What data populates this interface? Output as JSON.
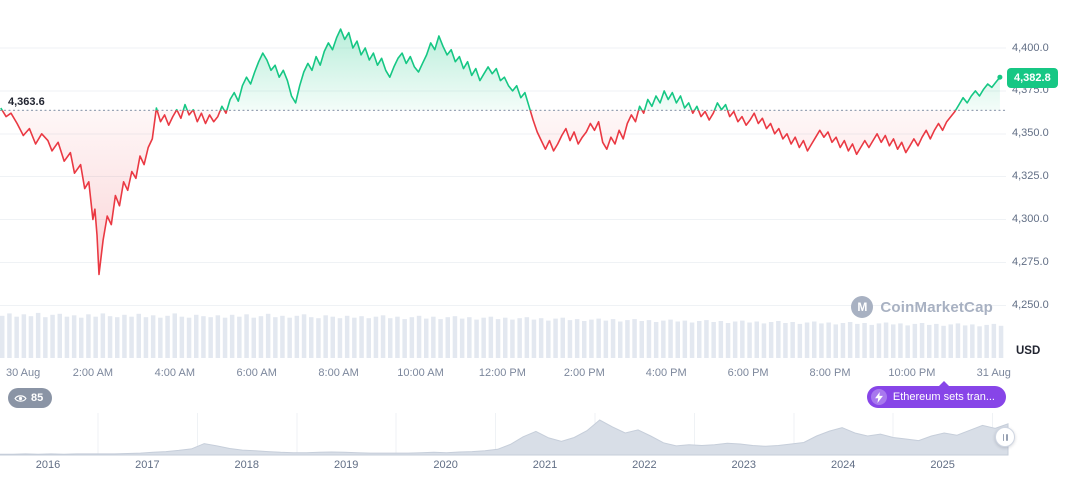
{
  "app": {
    "watermark": "CoinMarketCap"
  },
  "badges": {
    "viewers_count": "85",
    "news_label": "Ethereum sets tran...",
    "news_color": "#8745e8"
  },
  "chart_data": {
    "type": "line",
    "subtype": "baseline-area-with-volume",
    "unit_label": "USD",
    "baseline_value": 4363.6,
    "baseline_label": "4,363.6",
    "last_price": 4382.8,
    "last_price_label": "4,382.8",
    "ylim": [
      4250,
      4412
    ],
    "yticks": [
      {
        "value": 4400,
        "label": "4,400.0"
      },
      {
        "value": 4375,
        "label": "4,375.0"
      },
      {
        "value": 4350,
        "label": "4,350.0"
      },
      {
        "value": 4325,
        "label": "4,325.0"
      },
      {
        "value": 4300,
        "label": "4,300.0"
      },
      {
        "value": 4275,
        "label": "4,275.0"
      },
      {
        "value": 4250,
        "label": "4,250.0"
      }
    ],
    "xticks": [
      {
        "t": 0,
        "label": "30 Aug"
      },
      {
        "t": 2,
        "label": "2:00 AM"
      },
      {
        "t": 4,
        "label": "4:00 AM"
      },
      {
        "t": 6,
        "label": "6:00 AM"
      },
      {
        "t": 8,
        "label": "8:00 AM"
      },
      {
        "t": 10,
        "label": "10:00 AM"
      },
      {
        "t": 12,
        "label": "12:00 PM"
      },
      {
        "t": 14,
        "label": "2:00 PM"
      },
      {
        "t": 16,
        "label": "4:00 PM"
      },
      {
        "t": 18,
        "label": "6:00 PM"
      },
      {
        "t": 20,
        "label": "8:00 PM"
      },
      {
        "t": 22,
        "label": "10:00 PM"
      },
      {
        "t": 24,
        "label": "31 Aug"
      }
    ],
    "colors": {
      "up": "#16c784",
      "down": "#ea3943",
      "volume": "#e3e8f0",
      "baseline": "#97a2b4",
      "grid": "#eff2f5",
      "minimap_fill": "#d8dee7",
      "minimap_stroke": "#c6ceda"
    },
    "points": [
      [
        -0.25,
        4365
      ],
      [
        -0.12,
        4360
      ],
      [
        0,
        4362
      ],
      [
        0.15,
        4356
      ],
      [
        0.3,
        4349
      ],
      [
        0.45,
        4353
      ],
      [
        0.6,
        4344
      ],
      [
        0.75,
        4350
      ],
      [
        0.9,
        4346
      ],
      [
        1.0,
        4340
      ],
      [
        1.15,
        4345
      ],
      [
        1.3,
        4334
      ],
      [
        1.45,
        4339
      ],
      [
        1.55,
        4327
      ],
      [
        1.7,
        4332
      ],
      [
        1.8,
        4318
      ],
      [
        1.9,
        4322
      ],
      [
        2.0,
        4300
      ],
      [
        2.05,
        4306
      ],
      [
        2.1,
        4291
      ],
      [
        2.15,
        4268
      ],
      [
        2.25,
        4288
      ],
      [
        2.35,
        4302
      ],
      [
        2.45,
        4297
      ],
      [
        2.55,
        4314
      ],
      [
        2.65,
        4308
      ],
      [
        2.75,
        4322
      ],
      [
        2.85,
        4317
      ],
      [
        2.95,
        4328
      ],
      [
        3.05,
        4324
      ],
      [
        3.15,
        4337
      ],
      [
        3.25,
        4332
      ],
      [
        3.35,
        4342
      ],
      [
        3.45,
        4347
      ],
      [
        3.55,
        4365
      ],
      [
        3.65,
        4357
      ],
      [
        3.75,
        4361
      ],
      [
        3.85,
        4355
      ],
      [
        3.95,
        4360
      ],
      [
        4.05,
        4364
      ],
      [
        4.15,
        4359
      ],
      [
        4.25,
        4367
      ],
      [
        4.35,
        4361
      ],
      [
        4.45,
        4364
      ],
      [
        4.55,
        4357
      ],
      [
        4.65,
        4362
      ],
      [
        4.75,
        4356
      ],
      [
        4.85,
        4361
      ],
      [
        4.95,
        4357
      ],
      [
        5.05,
        4360
      ],
      [
        5.15,
        4366
      ],
      [
        5.25,
        4362
      ],
      [
        5.35,
        4370
      ],
      [
        5.45,
        4374
      ],
      [
        5.55,
        4369
      ],
      [
        5.65,
        4378
      ],
      [
        5.75,
        4383
      ],
      [
        5.85,
        4379
      ],
      [
        5.95,
        4386
      ],
      [
        6.05,
        4392
      ],
      [
        6.15,
        4397
      ],
      [
        6.25,
        4393
      ],
      [
        6.35,
        4387
      ],
      [
        6.45,
        4390
      ],
      [
        6.55,
        4383
      ],
      [
        6.65,
        4387
      ],
      [
        6.75,
        4381
      ],
      [
        6.85,
        4372
      ],
      [
        6.95,
        4368
      ],
      [
        7.05,
        4378
      ],
      [
        7.15,
        4386
      ],
      [
        7.25,
        4391
      ],
      [
        7.35,
        4387
      ],
      [
        7.45,
        4395
      ],
      [
        7.55,
        4390
      ],
      [
        7.65,
        4398
      ],
      [
        7.75,
        4403
      ],
      [
        7.85,
        4399
      ],
      [
        7.95,
        4406
      ],
      [
        8.05,
        4411
      ],
      [
        8.15,
        4405
      ],
      [
        8.25,
        4409
      ],
      [
        8.35,
        4400
      ],
      [
        8.45,
        4404
      ],
      [
        8.55,
        4396
      ],
      [
        8.65,
        4400
      ],
      [
        8.75,
        4393
      ],
      [
        8.85,
        4397
      ],
      [
        8.95,
        4390
      ],
      [
        9.05,
        4394
      ],
      [
        9.15,
        4387
      ],
      [
        9.25,
        4383
      ],
      [
        9.35,
        4389
      ],
      [
        9.45,
        4394
      ],
      [
        9.55,
        4397
      ],
      [
        9.65,
        4391
      ],
      [
        9.75,
        4395
      ],
      [
        9.85,
        4389
      ],
      [
        9.95,
        4386
      ],
      [
        10.05,
        4391
      ],
      [
        10.15,
        4396
      ],
      [
        10.25,
        4403
      ],
      [
        10.35,
        4399
      ],
      [
        10.45,
        4407
      ],
      [
        10.55,
        4401
      ],
      [
        10.65,
        4396
      ],
      [
        10.75,
        4399
      ],
      [
        10.85,
        4392
      ],
      [
        10.95,
        4395
      ],
      [
        11.05,
        4388
      ],
      [
        11.15,
        4392
      ],
      [
        11.25,
        4384
      ],
      [
        11.35,
        4388
      ],
      [
        11.45,
        4381
      ],
      [
        11.55,
        4385
      ],
      [
        11.65,
        4389
      ],
      [
        11.75,
        4385
      ],
      [
        11.85,
        4388
      ],
      [
        11.95,
        4381
      ],
      [
        12.05,
        4383
      ],
      [
        12.15,
        4378
      ],
      [
        12.25,
        4375
      ],
      [
        12.35,
        4378
      ],
      [
        12.45,
        4371
      ],
      [
        12.55,
        4374
      ],
      [
        12.65,
        4366
      ],
      [
        12.75,
        4358
      ],
      [
        12.85,
        4351
      ],
      [
        12.95,
        4346
      ],
      [
        13.05,
        4341
      ],
      [
        13.15,
        4346
      ],
      [
        13.25,
        4340
      ],
      [
        13.35,
        4344
      ],
      [
        13.45,
        4349
      ],
      [
        13.55,
        4353
      ],
      [
        13.65,
        4346
      ],
      [
        13.75,
        4351
      ],
      [
        13.85,
        4344
      ],
      [
        13.95,
        4348
      ],
      [
        14.05,
        4351
      ],
      [
        14.15,
        4356
      ],
      [
        14.25,
        4352
      ],
      [
        14.35,
        4357
      ],
      [
        14.45,
        4345
      ],
      [
        14.55,
        4341
      ],
      [
        14.65,
        4348
      ],
      [
        14.75,
        4344
      ],
      [
        14.85,
        4352
      ],
      [
        14.95,
        4347
      ],
      [
        15.05,
        4356
      ],
      [
        15.15,
        4361
      ],
      [
        15.25,
        4357
      ],
      [
        15.35,
        4366
      ],
      [
        15.45,
        4362
      ],
      [
        15.55,
        4370
      ],
      [
        15.65,
        4366
      ],
      [
        15.75,
        4372
      ],
      [
        15.85,
        4368
      ],
      [
        15.95,
        4375
      ],
      [
        16.05,
        4370
      ],
      [
        16.15,
        4374
      ],
      [
        16.25,
        4368
      ],
      [
        16.35,
        4372
      ],
      [
        16.45,
        4365
      ],
      [
        16.55,
        4368
      ],
      [
        16.65,
        4362
      ],
      [
        16.75,
        4366
      ],
      [
        16.85,
        4360
      ],
      [
        16.95,
        4363
      ],
      [
        17.05,
        4358
      ],
      [
        17.15,
        4362
      ],
      [
        17.25,
        4368
      ],
      [
        17.35,
        4364
      ],
      [
        17.45,
        4367
      ],
      [
        17.55,
        4360
      ],
      [
        17.65,
        4363
      ],
      [
        17.75,
        4357
      ],
      [
        17.85,
        4360
      ],
      [
        17.95,
        4355
      ],
      [
        18.05,
        4358
      ],
      [
        18.15,
        4362
      ],
      [
        18.25,
        4356
      ],
      [
        18.35,
        4359
      ],
      [
        18.45,
        4353
      ],
      [
        18.55,
        4356
      ],
      [
        18.65,
        4350
      ],
      [
        18.75,
        4353
      ],
      [
        18.85,
        4347
      ],
      [
        18.95,
        4350
      ],
      [
        19.05,
        4344
      ],
      [
        19.15,
        4348
      ],
      [
        19.25,
        4342
      ],
      [
        19.35,
        4346
      ],
      [
        19.45,
        4340
      ],
      [
        19.55,
        4344
      ],
      [
        19.65,
        4348
      ],
      [
        19.75,
        4352
      ],
      [
        19.85,
        4348
      ],
      [
        19.95,
        4351
      ],
      [
        20.05,
        4345
      ],
      [
        20.15,
        4348
      ],
      [
        20.25,
        4342
      ],
      [
        20.35,
        4346
      ],
      [
        20.45,
        4340
      ],
      [
        20.55,
        4344
      ],
      [
        20.65,
        4338
      ],
      [
        20.75,
        4342
      ],
      [
        20.85,
        4346
      ],
      [
        20.95,
        4342
      ],
      [
        21.05,
        4346
      ],
      [
        21.15,
        4350
      ],
      [
        21.25,
        4345
      ],
      [
        21.35,
        4349
      ],
      [
        21.45,
        4343
      ],
      [
        21.55,
        4347
      ],
      [
        21.65,
        4341
      ],
      [
        21.75,
        4345
      ],
      [
        21.85,
        4339
      ],
      [
        21.95,
        4343
      ],
      [
        22.05,
        4347
      ],
      [
        22.15,
        4343
      ],
      [
        22.25,
        4348
      ],
      [
        22.35,
        4352
      ],
      [
        22.45,
        4347
      ],
      [
        22.55,
        4352
      ],
      [
        22.65,
        4356
      ],
      [
        22.75,
        4352
      ],
      [
        22.85,
        4357
      ],
      [
        22.95,
        4360
      ],
      [
        23.05,
        4363
      ],
      [
        23.15,
        4367
      ],
      [
        23.25,
        4371
      ],
      [
        23.35,
        4368
      ],
      [
        23.45,
        4372
      ],
      [
        23.55,
        4375
      ],
      [
        23.65,
        4372
      ],
      [
        23.75,
        4376
      ],
      [
        23.85,
        4379
      ],
      [
        23.95,
        4377
      ],
      [
        24.05,
        4380
      ],
      [
        24.15,
        4383
      ]
    ],
    "volume": [
      0.88,
      0.93,
      0.86,
      0.91,
      0.87,
      0.94,
      0.85,
      0.9,
      0.92,
      0.86,
      0.89,
      0.84,
      0.91,
      0.86,
      0.93,
      0.87,
      0.85,
      0.9,
      0.86,
      0.92,
      0.85,
      0.89,
      0.84,
      0.88,
      0.93,
      0.86,
      0.84,
      0.9,
      0.87,
      0.85,
      0.89,
      0.84,
      0.9,
      0.86,
      0.91,
      0.84,
      0.87,
      0.92,
      0.85,
      0.88,
      0.84,
      0.88,
      0.91,
      0.85,
      0.83,
      0.89,
      0.86,
      0.83,
      0.88,
      0.84,
      0.87,
      0.83,
      0.86,
      0.89,
      0.83,
      0.86,
      0.81,
      0.85,
      0.88,
      0.82,
      0.86,
      0.81,
      0.85,
      0.87,
      0.82,
      0.85,
      0.8,
      0.84,
      0.86,
      0.81,
      0.84,
      0.8,
      0.83,
      0.85,
      0.8,
      0.83,
      0.78,
      0.82,
      0.84,
      0.79,
      0.81,
      0.77,
      0.8,
      0.82,
      0.78,
      0.81,
      0.76,
      0.79,
      0.81,
      0.77,
      0.79,
      0.75,
      0.78,
      0.8,
      0.76,
      0.78,
      0.74,
      0.77,
      0.79,
      0.75,
      0.77,
      0.73,
      0.76,
      0.78,
      0.74,
      0.76,
      0.72,
      0.75,
      0.77,
      0.73,
      0.75,
      0.71,
      0.74,
      0.76,
      0.72,
      0.74,
      0.7,
      0.73,
      0.75,
      0.71,
      0.73,
      0.69,
      0.72,
      0.74,
      0.7,
      0.72,
      0.68,
      0.71,
      0.73,
      0.69,
      0.71,
      0.67,
      0.7,
      0.72,
      0.68,
      0.7,
      0.66,
      0.69,
      0.71,
      0.67
    ],
    "minimap": {
      "type": "area",
      "years": [
        "2016",
        "2017",
        "2018",
        "2019",
        "2020",
        "2021",
        "2022",
        "2023",
        "2024",
        "2025"
      ],
      "points": [
        0.02,
        0.02,
        0.03,
        0.02,
        0.03,
        0.02,
        0.03,
        0.03,
        0.03,
        0.03,
        0.04,
        0.05,
        0.07,
        0.09,
        0.12,
        0.16,
        0.3,
        0.24,
        0.17,
        0.13,
        0.11,
        0.09,
        0.07,
        0.06,
        0.06,
        0.07,
        0.08,
        0.07,
        0.06,
        0.05,
        0.05,
        0.05,
        0.05,
        0.06,
        0.07,
        0.06,
        0.08,
        0.09,
        0.11,
        0.15,
        0.28,
        0.48,
        0.62,
        0.45,
        0.36,
        0.46,
        0.64,
        0.92,
        0.74,
        0.58,
        0.66,
        0.5,
        0.32,
        0.24,
        0.27,
        0.25,
        0.27,
        0.31,
        0.29,
        0.25,
        0.23,
        0.25,
        0.29,
        0.33,
        0.5,
        0.63,
        0.72,
        0.58,
        0.5,
        0.55,
        0.46,
        0.42,
        0.38,
        0.5,
        0.58,
        0.52,
        0.65,
        0.78,
        0.7,
        0.82
      ]
    }
  }
}
